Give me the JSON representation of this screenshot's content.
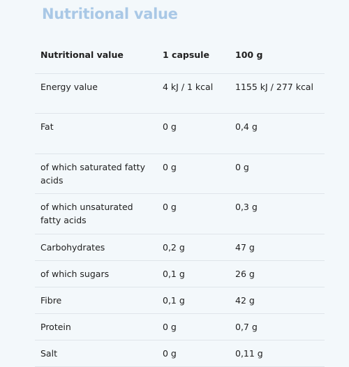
{
  "page": {
    "title": "Nutritional value"
  },
  "table": {
    "headers": [
      "Nutritional value",
      "1 capsule",
      "100 g"
    ],
    "rows": [
      [
        "Energy value",
        "4 kJ / 1 kcal",
        "1155 kJ / 277 kcal"
      ],
      [
        "Fat",
        "0 g",
        "0,4 g"
      ],
      [
        "of which saturated fatty acids",
        "0 g",
        "0 g"
      ],
      [
        "of which unsaturated fatty acids",
        "0 g",
        "0,3 g"
      ],
      [
        "Carbohydrates",
        "0,2 g",
        "47 g"
      ],
      [
        "of which sugars",
        "0,1 g",
        "26 g"
      ],
      [
        "Fibre",
        "0,1 g",
        "42 g"
      ],
      [
        "Protein",
        "0 g",
        "0,7 g"
      ],
      [
        "Salt",
        "0 g",
        "0,11 g"
      ]
    ]
  },
  "colors": {
    "background": "#f3f8fb",
    "title": "#a9c8e6",
    "text": "#202020",
    "divider": "#dfe5ea"
  }
}
